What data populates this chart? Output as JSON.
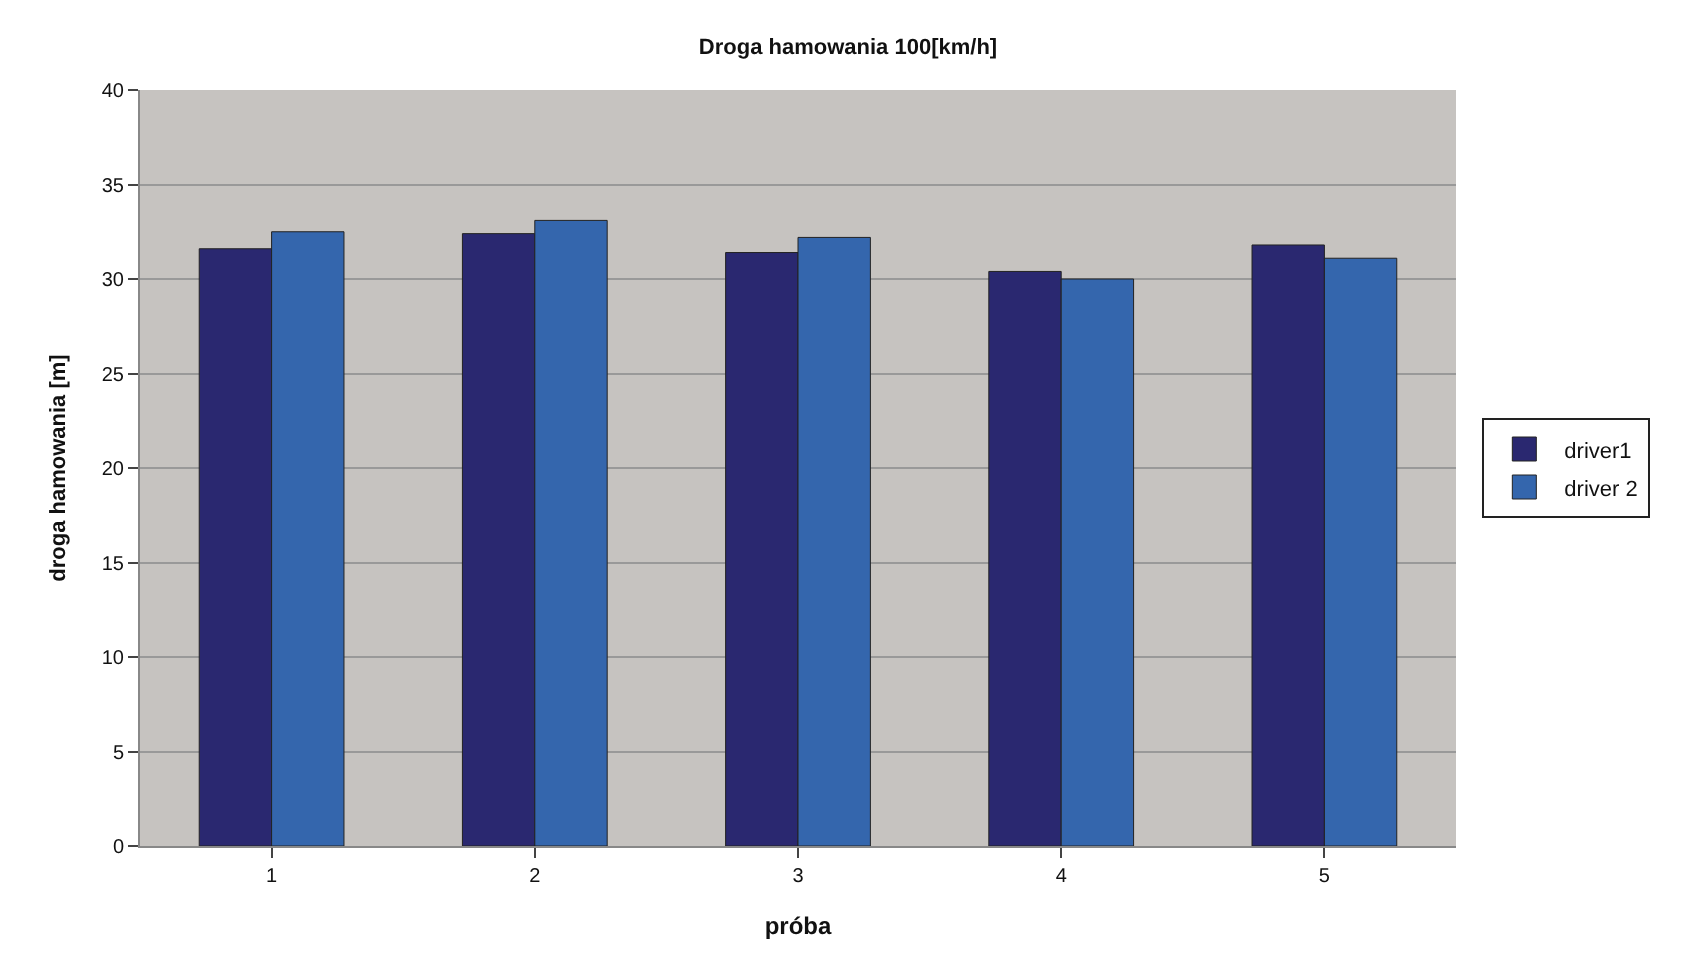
{
  "chart_data": {
    "type": "bar",
    "title": "Droga hamowania 100[km/h]",
    "xlabel": "próba",
    "ylabel": "droga hamowania [m]",
    "categories": [
      "1",
      "2",
      "3",
      "4",
      "5"
    ],
    "series": [
      {
        "name": "driver1",
        "color": "#2a2870",
        "values": [
          31.6,
          32.4,
          31.4,
          30.4,
          31.8
        ]
      },
      {
        "name": "driver 2",
        "color": "#3466ad",
        "values": [
          32.5,
          33.1,
          32.2,
          30.0,
          31.1
        ]
      }
    ],
    "ylim": [
      0,
      40
    ],
    "yticks": [
      0,
      5,
      10,
      15,
      20,
      25,
      30,
      35,
      40
    ],
    "grid": "y",
    "legend": "right"
  }
}
